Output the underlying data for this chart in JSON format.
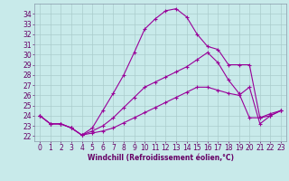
{
  "xlabel": "Windchill (Refroidissement éolien,°C)",
  "background_color": "#c8eaea",
  "grid_color": "#aacccc",
  "line_color": "#990099",
  "xlim": [
    -0.5,
    23.5
  ],
  "ylim": [
    21.5,
    35.0
  ],
  "xticks": [
    0,
    1,
    2,
    3,
    4,
    5,
    6,
    7,
    8,
    9,
    10,
    11,
    12,
    13,
    14,
    15,
    16,
    17,
    18,
    19,
    20,
    21,
    22,
    23
  ],
  "yticks": [
    22,
    23,
    24,
    25,
    26,
    27,
    28,
    29,
    30,
    31,
    32,
    33,
    34
  ],
  "line1_x": [
    0,
    1,
    2,
    3,
    4,
    5,
    6,
    7,
    8,
    9,
    10,
    11,
    12,
    13,
    14,
    15,
    16,
    17,
    18,
    19,
    20,
    21,
    22,
    23
  ],
  "line1_y": [
    24.0,
    23.2,
    23.2,
    22.8,
    22.1,
    22.8,
    24.5,
    26.2,
    28.0,
    30.2,
    32.5,
    33.5,
    34.3,
    34.5,
    33.7,
    32.0,
    30.8,
    30.5,
    29.0,
    29.0,
    29.0,
    23.8,
    24.2,
    24.5
  ],
  "line2_x": [
    0,
    1,
    2,
    3,
    4,
    5,
    6,
    7,
    8,
    9,
    10,
    11,
    12,
    13,
    14,
    15,
    16,
    17,
    18,
    19,
    20,
    21,
    22,
    23
  ],
  "line2_y": [
    24.0,
    23.2,
    23.2,
    22.8,
    22.1,
    22.5,
    23.0,
    23.8,
    24.8,
    25.8,
    26.8,
    27.3,
    27.8,
    28.3,
    28.8,
    29.5,
    30.2,
    29.2,
    27.5,
    26.2,
    23.8,
    23.8,
    24.0,
    24.5
  ],
  "line3_x": [
    0,
    1,
    2,
    3,
    4,
    5,
    6,
    7,
    8,
    9,
    10,
    11,
    12,
    13,
    14,
    15,
    16,
    17,
    18,
    19,
    20,
    21,
    22,
    23
  ],
  "line3_y": [
    24.0,
    23.2,
    23.2,
    22.8,
    22.1,
    22.3,
    22.5,
    22.8,
    23.3,
    23.8,
    24.3,
    24.8,
    25.3,
    25.8,
    26.3,
    26.8,
    26.8,
    26.5,
    26.2,
    26.0,
    26.8,
    23.2,
    24.0,
    24.5
  ],
  "xlabel_fontsize": 5.5,
  "tick_fontsize": 5.5,
  "marker": "+"
}
